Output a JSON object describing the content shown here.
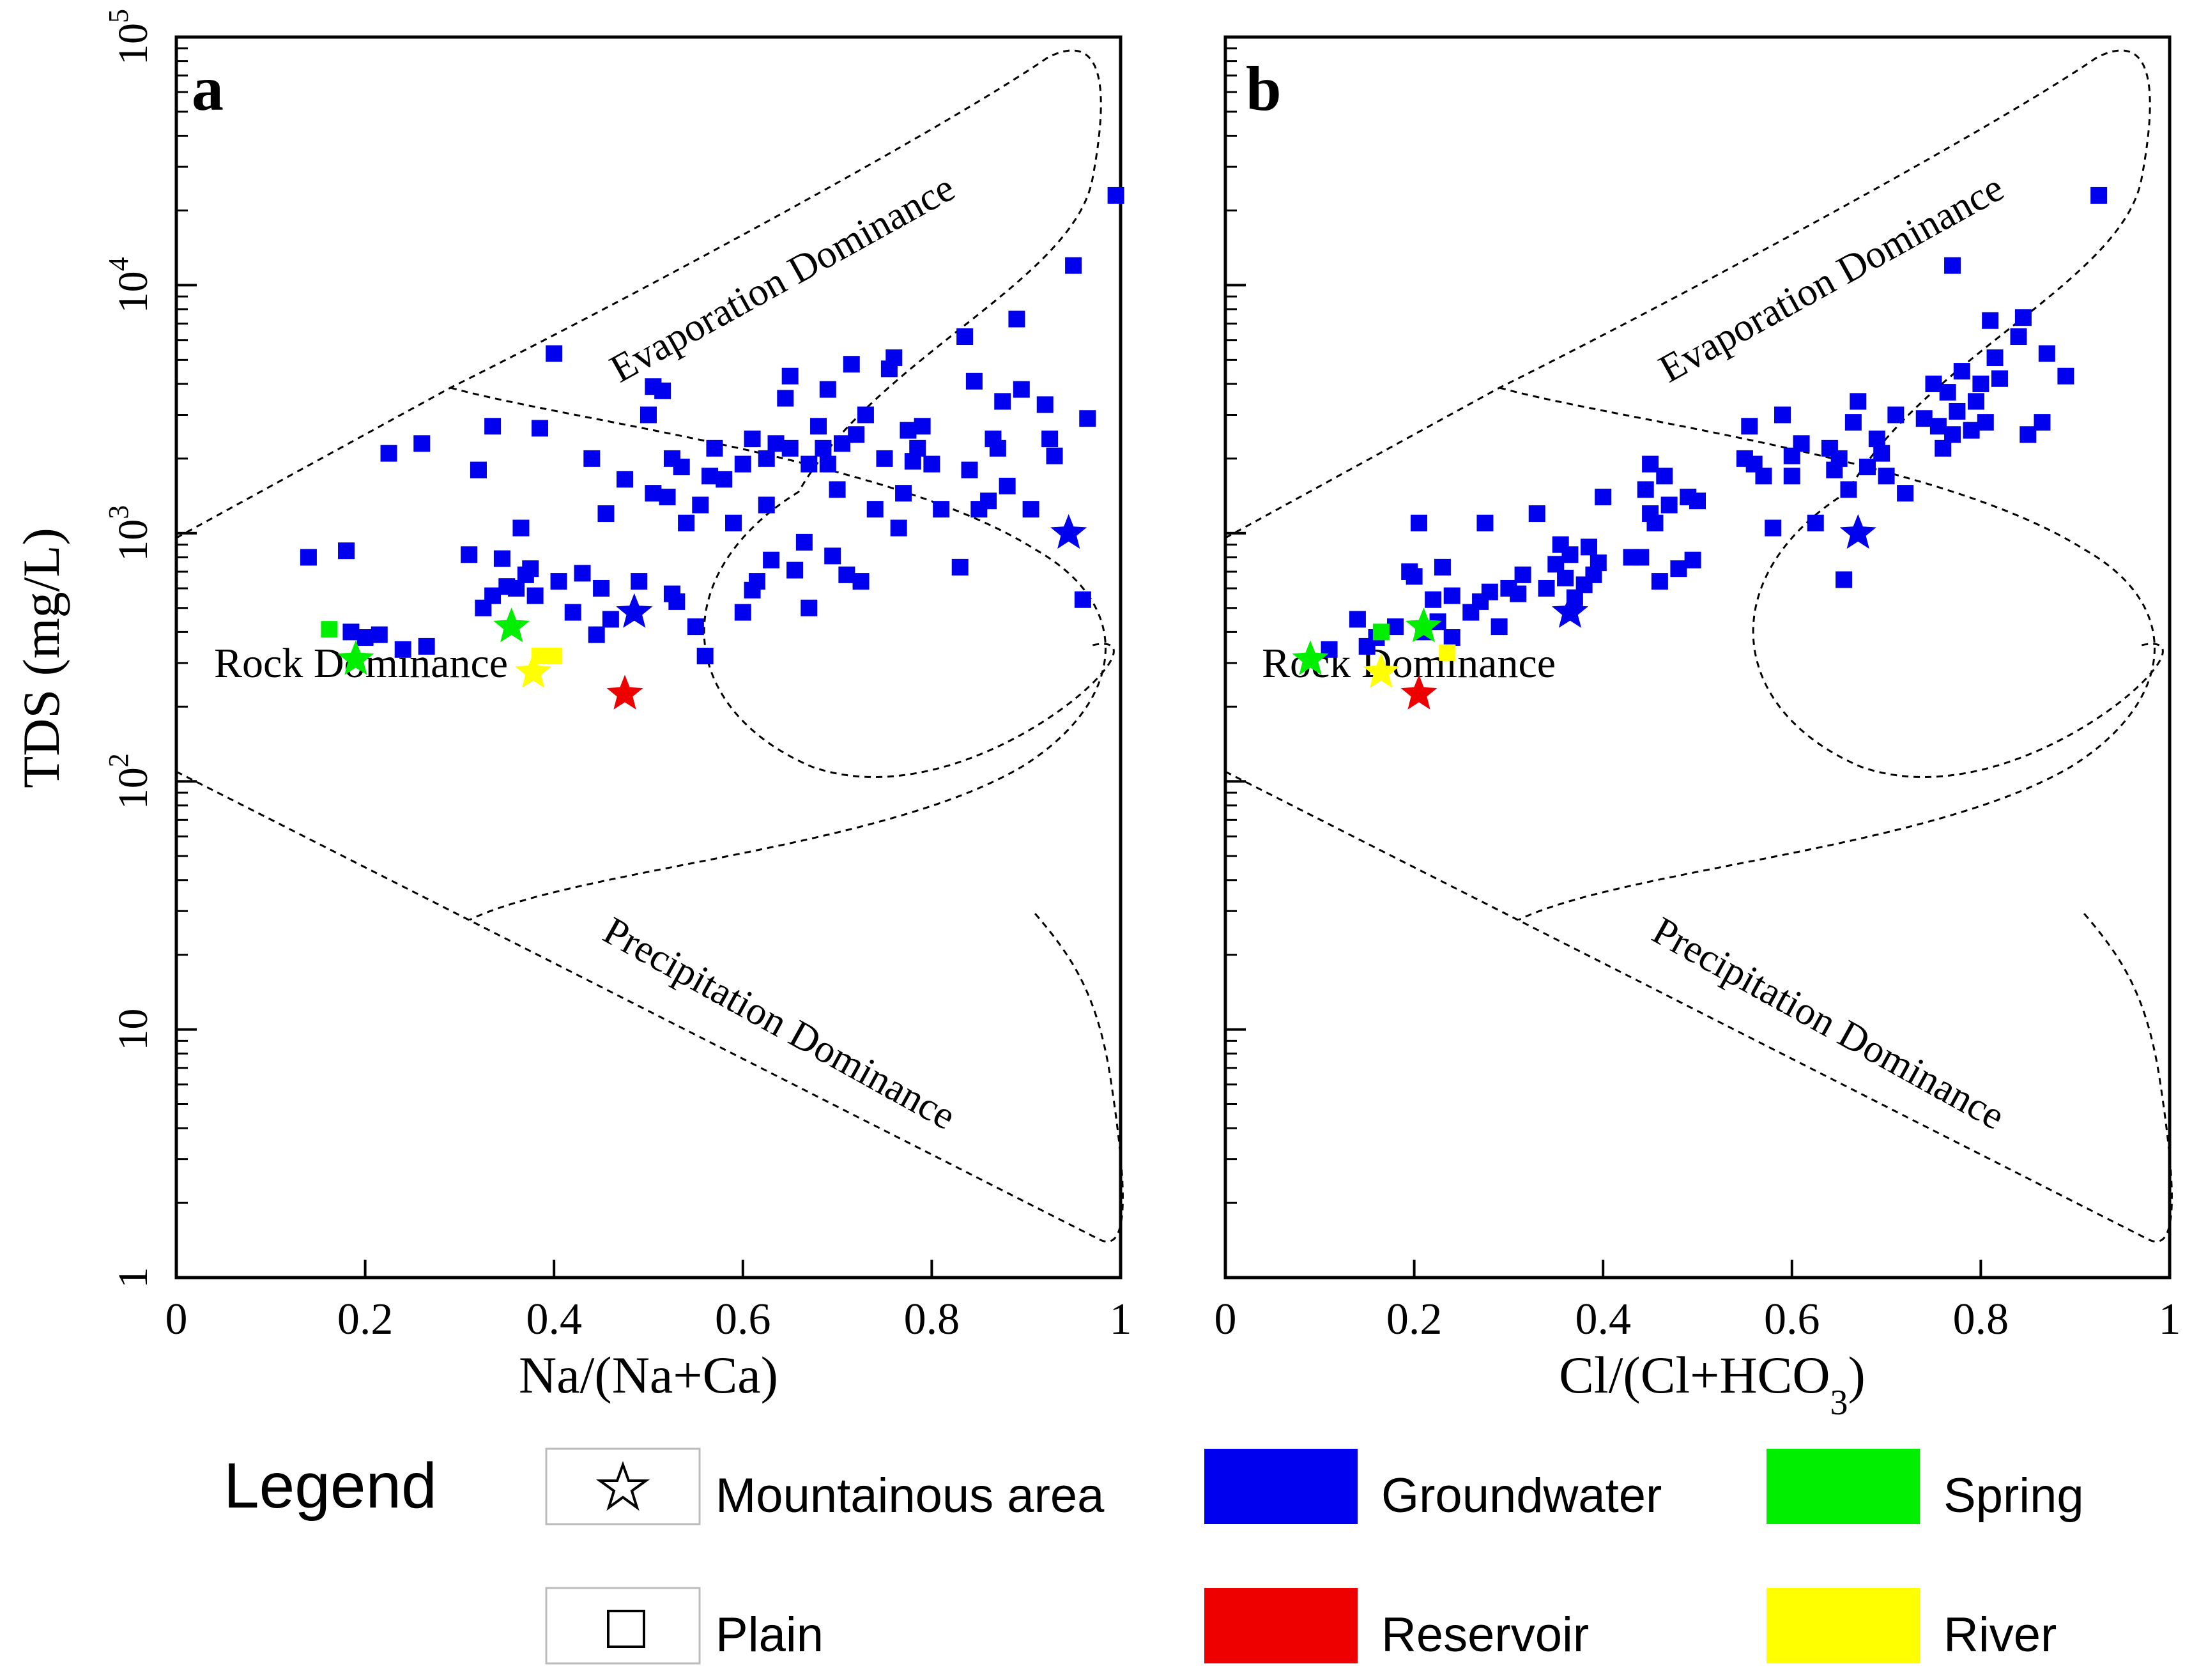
{
  "chart_data": [
    {
      "type": "scatter",
      "panel_label": "a",
      "xlabel": "Na/(Na+Ca)",
      "ylabel": "TDS (mg/L)",
      "xlim": [
        0,
        1
      ],
      "ylim": [
        1,
        100000
      ],
      "yscale": "log",
      "xticks": [
        "0",
        "0.2",
        "0.4",
        "0.6",
        "0.8",
        "1"
      ],
      "yticks": [
        {
          "base": "1",
          "exp": ""
        },
        {
          "base": "10",
          "exp": ""
        },
        {
          "base": "10",
          "exp": "2"
        },
        {
          "base": "10",
          "exp": "3"
        },
        {
          "base": "10",
          "exp": "4"
        },
        {
          "base": "10",
          "exp": "5"
        }
      ],
      "region_labels": [
        "Evaporation Dominance",
        "Rock Dominance",
        "Precipitation Dominance"
      ],
      "series": [
        {
          "name": "Groundwater",
          "area": "Plain",
          "marker": "square",
          "color": "#0000ee",
          "points": [
            [
              0.14,
              800
            ],
            [
              0.18,
              850
            ],
            [
              0.185,
              400
            ],
            [
              0.2,
              380
            ],
            [
              0.215,
              390
            ],
            [
              0.225,
              2100
            ],
            [
              0.24,
              340
            ],
            [
              0.26,
              2300
            ],
            [
              0.265,
              350
            ],
            [
              0.31,
              820
            ],
            [
              0.32,
              1800
            ],
            [
              0.325,
              500
            ],
            [
              0.335,
              2700
            ],
            [
              0.335,
              560
            ],
            [
              0.345,
              790
            ],
            [
              0.35,
              610
            ],
            [
              0.36,
              600
            ],
            [
              0.365,
              1050
            ],
            [
              0.37,
              680
            ],
            [
              0.375,
              720
            ],
            [
              0.38,
              560
            ],
            [
              0.385,
              2650
            ],
            [
              0.4,
              5300
            ],
            [
              0.405,
              640
            ],
            [
              0.42,
              480
            ],
            [
              0.43,
              690
            ],
            [
              0.44,
              2000
            ],
            [
              0.445,
              390
            ],
            [
              0.45,
              600
            ],
            [
              0.455,
              1200
            ],
            [
              0.46,
              450
            ],
            [
              0.475,
              1650
            ],
            [
              0.49,
              640
            ],
            [
              0.5,
              3000
            ],
            [
              0.505,
              3900
            ],
            [
              0.505,
              1450
            ],
            [
              0.515,
              3750
            ],
            [
              0.52,
              1400
            ],
            [
              0.525,
              2000
            ],
            [
              0.525,
              570
            ],
            [
              0.53,
              530
            ],
            [
              0.535,
              1850
            ],
            [
              0.54,
              1100
            ],
            [
              0.55,
              420
            ],
            [
              0.555,
              1300
            ],
            [
              0.56,
              320
            ],
            [
              0.565,
              1700
            ],
            [
              0.57,
              2200
            ],
            [
              0.58,
              1650
            ],
            [
              0.59,
              1100
            ],
            [
              0.6,
              1900
            ],
            [
              0.6,
              480
            ],
            [
              0.61,
              2400
            ],
            [
              0.61,
              590
            ],
            [
              0.615,
              640
            ],
            [
              0.625,
              2000
            ],
            [
              0.625,
              1300
            ],
            [
              0.63,
              780
            ],
            [
              0.635,
              2300
            ],
            [
              0.645,
              3500
            ],
            [
              0.65,
              4300
            ],
            [
              0.65,
              2200
            ],
            [
              0.655,
              710
            ],
            [
              0.665,
              920
            ],
            [
              0.67,
              1900
            ],
            [
              0.67,
              500
            ],
            [
              0.68,
              2700
            ],
            [
              0.685,
              2200
            ],
            [
              0.69,
              3800
            ],
            [
              0.69,
              1900
            ],
            [
              0.695,
              810
            ],
            [
              0.7,
              1500
            ],
            [
              0.705,
              2300
            ],
            [
              0.71,
              680
            ],
            [
              0.715,
              4800
            ],
            [
              0.72,
              2500
            ],
            [
              0.725,
              640
            ],
            [
              0.73,
              3000
            ],
            [
              0.74,
              1250
            ],
            [
              0.75,
              2000
            ],
            [
              0.755,
              4600
            ],
            [
              0.76,
              5100
            ],
            [
              0.765,
              1050
            ],
            [
              0.77,
              1450
            ],
            [
              0.775,
              2600
            ],
            [
              0.78,
              1950
            ],
            [
              0.785,
              2200
            ],
            [
              0.79,
              2700
            ],
            [
              0.8,
              1900
            ],
            [
              0.81,
              1250
            ],
            [
              0.83,
              730
            ],
            [
              0.835,
              6200
            ],
            [
              0.84,
              1800
            ],
            [
              0.845,
              4100
            ],
            [
              0.85,
              1250
            ],
            [
              0.86,
              1350
            ],
            [
              0.865,
              2400
            ],
            [
              0.87,
              2200
            ],
            [
              0.875,
              3400
            ],
            [
              0.88,
              1550
            ],
            [
              0.89,
              7300
            ],
            [
              0.895,
              3800
            ],
            [
              0.905,
              1250
            ],
            [
              0.92,
              3300
            ],
            [
              0.925,
              2400
            ],
            [
              0.93,
              2050
            ],
            [
              0.95,
              12000
            ],
            [
              0.96,
              540
            ],
            [
              0.965,
              2900
            ],
            [
              0.995,
              23000
            ]
          ]
        },
        {
          "name": "Spring",
          "area": "Plain",
          "marker": "square",
          "color": "#00ee00",
          "points": [
            [
              0.162,
              410
            ]
          ]
        },
        {
          "name": "River",
          "area": "Plain",
          "marker": "square",
          "color": "#ffff00",
          "points": [
            [
              0.385,
              320
            ],
            [
              0.4,
              320
            ]
          ]
        },
        {
          "name": "Groundwater",
          "area": "Mountainous area",
          "marker": "star",
          "color": "#0000ee",
          "points": [
            [
              0.485,
              480
            ],
            [
              0.945,
              1000
            ]
          ]
        },
        {
          "name": "Spring",
          "area": "Mountainous area",
          "marker": "star",
          "color": "#00ee00",
          "points": [
            [
              0.19,
              310
            ],
            [
              0.355,
              420
            ]
          ]
        },
        {
          "name": "River",
          "area": "Mountainous area",
          "marker": "star",
          "color": "#ffff00",
          "points": [
            [
              0.378,
              275
            ]
          ]
        },
        {
          "name": "Reservoir",
          "area": "Mountainous area",
          "marker": "star",
          "color": "#ee0000",
          "points": [
            [
              0.475,
              225
            ]
          ]
        }
      ]
    },
    {
      "type": "scatter",
      "panel_label": "b",
      "xlabel": "Cl/(Cl+HCO",
      "xlabel_sub": "3",
      "xlabel_end": ")",
      "ylim": [
        1,
        100000
      ],
      "xlim": [
        0,
        1
      ],
      "yscale": "log",
      "xticks": [
        "0",
        "0.2",
        "0.4",
        "0.6",
        "0.8",
        "1"
      ],
      "region_labels": [
        "Evaporation Dominance",
        "Rock Dominance",
        "Precipitation Dominance"
      ],
      "series": [
        {
          "name": "Groundwater",
          "area": "Plain",
          "marker": "square",
          "color": "#0000ee",
          "points": [
            [
              0.11,
              340
            ],
            [
              0.14,
              450
            ],
            [
              0.15,
              350
            ],
            [
              0.16,
              380
            ],
            [
              0.18,
              420
            ],
            [
              0.195,
              700
            ],
            [
              0.2,
              670
            ],
            [
              0.205,
              1100
            ],
            [
              0.21,
              400
            ],
            [
              0.22,
              540
            ],
            [
              0.225,
              440
            ],
            [
              0.23,
              730
            ],
            [
              0.24,
              380
            ],
            [
              0.24,
              560
            ],
            [
              0.26,
              480
            ],
            [
              0.27,
              530
            ],
            [
              0.275,
              1100
            ],
            [
              0.28,
              580
            ],
            [
              0.29,
              420
            ],
            [
              0.3,
              600
            ],
            [
              0.31,
              570
            ],
            [
              0.315,
              680
            ],
            [
              0.33,
              1200
            ],
            [
              0.34,
              600
            ],
            [
              0.35,
              750
            ],
            [
              0.355,
              900
            ],
            [
              0.36,
              660
            ],
            [
              0.365,
              820
            ],
            [
              0.37,
              550
            ],
            [
              0.38,
              620
            ],
            [
              0.385,
              880
            ],
            [
              0.39,
              680
            ],
            [
              0.395,
              760
            ],
            [
              0.4,
              1400
            ],
            [
              0.43,
              800
            ],
            [
              0.44,
              800
            ],
            [
              0.445,
              1500
            ],
            [
              0.45,
              1900
            ],
            [
              0.45,
              1200
            ],
            [
              0.455,
              1100
            ],
            [
              0.46,
              640
            ],
            [
              0.465,
              1700
            ],
            [
              0.47,
              1300
            ],
            [
              0.48,
              720
            ],
            [
              0.49,
              1400
            ],
            [
              0.495,
              780
            ],
            [
              0.5,
              1350
            ],
            [
              0.55,
              2000
            ],
            [
              0.555,
              2700
            ],
            [
              0.56,
              1900
            ],
            [
              0.57,
              1700
            ],
            [
              0.58,
              1050
            ],
            [
              0.59,
              3000
            ],
            [
              0.6,
              2050
            ],
            [
              0.6,
              1700
            ],
            [
              0.61,
              2300
            ],
            [
              0.625,
              1100
            ],
            [
              0.64,
              2200
            ],
            [
              0.645,
              1800
            ],
            [
              0.65,
              2000
            ],
            [
              0.655,
              650
            ],
            [
              0.66,
              1500
            ],
            [
              0.665,
              2800
            ],
            [
              0.67,
              3400
            ],
            [
              0.68,
              1850
            ],
            [
              0.69,
              2400
            ],
            [
              0.695,
              2100
            ],
            [
              0.7,
              1700
            ],
            [
              0.71,
              3000
            ],
            [
              0.72,
              1450
            ],
            [
              0.74,
              2900
            ],
            [
              0.75,
              4000
            ],
            [
              0.755,
              2700
            ],
            [
              0.76,
              2200
            ],
            [
              0.765,
              3700
            ],
            [
              0.77,
              12000
            ],
            [
              0.77,
              2500
            ],
            [
              0.775,
              3100
            ],
            [
              0.78,
              4500
            ],
            [
              0.79,
              2600
            ],
            [
              0.795,
              3400
            ],
            [
              0.8,
              4000
            ],
            [
              0.805,
              2800
            ],
            [
              0.81,
              7200
            ],
            [
              0.815,
              5100
            ],
            [
              0.82,
              4200
            ],
            [
              0.84,
              6200
            ],
            [
              0.845,
              7400
            ],
            [
              0.85,
              2500
            ],
            [
              0.865,
              2800
            ],
            [
              0.87,
              5300
            ],
            [
              0.89,
              4300
            ],
            [
              0.925,
              23000
            ]
          ]
        },
        {
          "name": "Spring",
          "area": "Plain",
          "marker": "square",
          "color": "#00ee00",
          "points": [
            [
              0.165,
              400
            ]
          ]
        },
        {
          "name": "River",
          "area": "Plain",
          "marker": "square",
          "color": "#ffff00",
          "points": [
            [
              0.235,
              330
            ]
          ]
        },
        {
          "name": "Groundwater",
          "area": "Mountainous area",
          "marker": "star",
          "color": "#0000ee",
          "points": [
            [
              0.365,
              480
            ],
            [
              0.67,
              1000
            ]
          ]
        },
        {
          "name": "Spring",
          "area": "Mountainous area",
          "marker": "star",
          "color": "#00ee00",
          "points": [
            [
              0.09,
              310
            ],
            [
              0.21,
              420
            ]
          ]
        },
        {
          "name": "River",
          "area": "Mountainous area",
          "marker": "star",
          "color": "#ffff00",
          "points": [
            [
              0.165,
              275
            ]
          ]
        },
        {
          "name": "Reservoir",
          "area": "Mountainous area",
          "marker": "star",
          "color": "#ee0000",
          "points": [
            [
              0.205,
              225
            ]
          ]
        }
      ]
    }
  ],
  "legend": {
    "title": "Legend",
    "markers": [
      {
        "key": "star",
        "label": "Mountainous area"
      },
      {
        "key": "square",
        "label": "Plain"
      }
    ],
    "colors": [
      {
        "label": "Groundwater",
        "color": "#0000ee"
      },
      {
        "label": "Reservoir",
        "color": "#ee0000"
      },
      {
        "label": "Spring",
        "color": "#00ee00"
      },
      {
        "label": "River",
        "color": "#ffff00"
      }
    ]
  }
}
